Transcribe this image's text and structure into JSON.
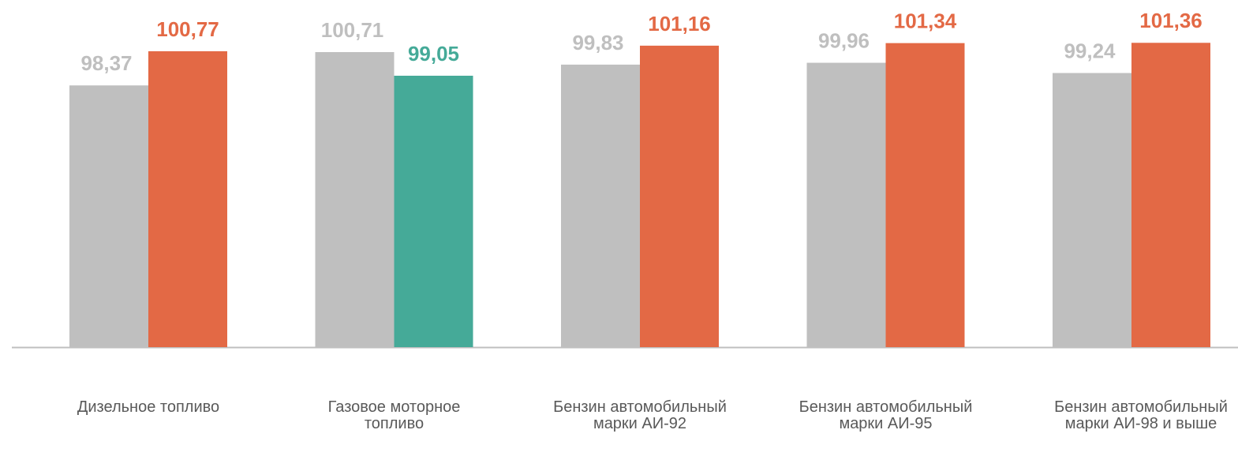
{
  "chart_data": {
    "type": "bar",
    "categories": [
      "Дизельное топливо",
      "Газовое моторное топливо",
      "Бензин автомобильный марки АИ-92",
      "Бензин автомобильный марки АИ-95",
      "Бензин автомобильный марки АИ-98 и выше"
    ],
    "series": [
      {
        "color": "#bfbfbf",
        "values": [
          98.37,
          100.71,
          99.83,
          99.96,
          99.24
        ],
        "value_labels": [
          "98,37",
          "100,71",
          "99,83",
          "99,96",
          "99,24"
        ]
      },
      {
        "colors": [
          "#e36945",
          "#45aa98",
          "#e36945",
          "#e36945",
          "#e36945"
        ],
        "values": [
          100.77,
          99.05,
          101.16,
          101.34,
          101.36
        ],
        "value_labels": [
          "100,77",
          "99,05",
          "101,16",
          "101,34",
          "101,36"
        ]
      }
    ],
    "ylim": [
      80,
      104
    ]
  }
}
